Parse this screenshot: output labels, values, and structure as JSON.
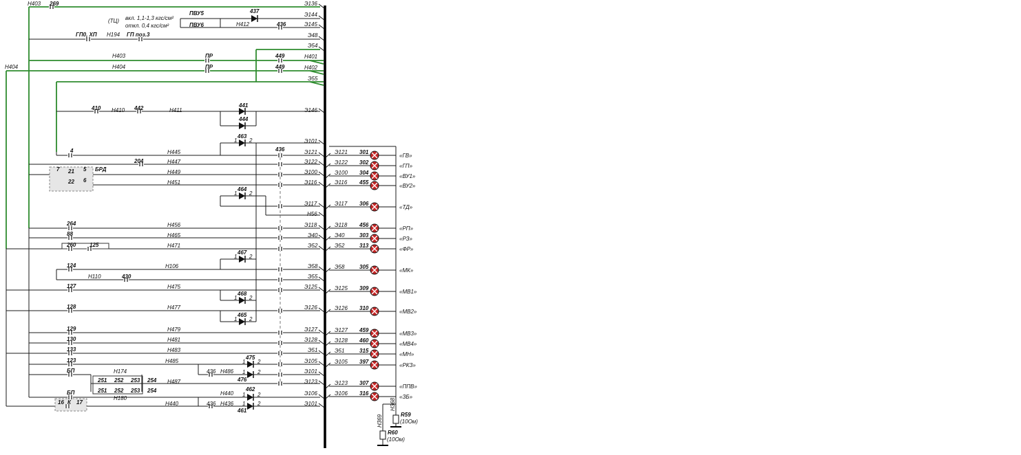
{
  "colors": {
    "wire": "#1a1a1a",
    "green_wire": "#2e8b2e",
    "lamp_fill": "#c62828",
    "box_fill": "#e6e6e6"
  },
  "top": {
    "h403": "Н403",
    "c269": "269",
    "h404": "Н404",
    "pvu5": "ПВУ5",
    "pvu6": "ПВУ6",
    "d437": "437",
    "c436": "436",
    "h412": "Н412",
    "tc": "(ТЦ)",
    "on": "вкл. 1,1-1,3 кгс/см²",
    "off": "откл. 0,4 кгс/см²",
    "gp0": "ГП0, ХП",
    "h194": "Н194",
    "gp3": "ГП поз.3",
    "h403b": "Н403",
    "h404b": "Н404",
    "pr1": "ПР",
    "pr2": "ПР",
    "c449a": "449",
    "c449b": "449",
    "e136": "Э136",
    "e144": "Э144",
    "e145": "Э145",
    "e48": "Э48",
    "e54": "Э54",
    "h401": "Н401",
    "h402": "Н402",
    "e55": "Э55"
  },
  "rows": {
    "c410": "410",
    "h410": "Н410",
    "c442": "442",
    "h411": "Н411",
    "d441": "441",
    "d444": "444",
    "e146": "Э146",
    "d463": "463",
    "e101": "Э101",
    "c4": "4",
    "h445": "Н445",
    "c436": "436",
    "e121": "Э121",
    "c204": "204",
    "h447": "Н447",
    "e122": "Э122",
    "brd": "БРД",
    "b7": "7",
    "b21": "21",
    "b5": "5",
    "b22": "22",
    "b6": "6",
    "h449": "Н449",
    "e100": "Э100",
    "h451": "Н451",
    "e116": "Э116",
    "d464": "464",
    "e117": "Э117",
    "h56": "Н56",
    "c264": "264",
    "h456": "Н456",
    "e118": "Э118",
    "c88": "88",
    "h465": "Н465",
    "e40": "Э40",
    "c260": "260",
    "c125": "125",
    "h471": "Н471",
    "e52": "Э52",
    "c124": "124",
    "h106": "Н106",
    "d467": "467",
    "e58": "Э58",
    "h110": "Н110",
    "c430": "430",
    "e55b": "Э55",
    "c127": "127",
    "h475": "Н475",
    "e125": "Э125",
    "d468": "468",
    "c128": "128",
    "h477": "Н477",
    "e126": "Э126",
    "d465": "465",
    "c129": "129",
    "h479": "Н479",
    "e127": "Э127",
    "c130": "130",
    "h481": "Н481",
    "e128": "Э128",
    "c133": "133",
    "h483": "Н483",
    "e51": "Э51",
    "c123": "123",
    "h485": "Н485",
    "d475": "475",
    "e105": "Э105",
    "bp1": "БП",
    "h174": "Н174",
    "c436b": "436",
    "h486": "Н486",
    "d476": "476",
    "e101b": "Э101",
    "c251a": "251",
    "c252a": "252",
    "c253a": "253",
    "c254a": "254",
    "c251b": "251",
    "c252b": "252",
    "c253b": "253",
    "c254b": "254",
    "h487": "Н487",
    "e123": "Э123",
    "h180": "Н180",
    "bp2": "БП",
    "h440": "Н440",
    "d462": "462",
    "e106": "Э106",
    "k16": "16",
    "kk": "К",
    "k17": "17",
    "h440b": "Н440",
    "c436c": "436",
    "h436": "Н436",
    "d461": "461",
    "e101c": "Э101",
    "one": "1",
    "two": "2"
  },
  "lamps": [
    {
      "wire": "Э121",
      "num": "301",
      "label": "«ГВ»"
    },
    {
      "wire": "Э122",
      "num": "302",
      "label": "«ГП»"
    },
    {
      "wire": "Э100",
      "num": "304",
      "label": "«ВУ1»"
    },
    {
      "wire": "Э116",
      "num": "455",
      "label": "«ВУ2»"
    },
    {
      "wire": "Э117",
      "num": "306",
      "label": "«ТД»"
    },
    {
      "wire": "Э118",
      "num": "456",
      "label": "«РП»"
    },
    {
      "wire": "Э40",
      "num": "303",
      "label": "«РЗ»"
    },
    {
      "wire": "Э52",
      "num": "313",
      "label": "«ФР»"
    },
    {
      "wire": "Э58",
      "num": "305",
      "label": "«МК»"
    },
    {
      "wire": "Э125",
      "num": "309",
      "label": "«МВ1»"
    },
    {
      "wire": "Э126",
      "num": "310",
      "label": "«МВ2»"
    },
    {
      "wire": "Э127",
      "num": "459",
      "label": "«МВ3»"
    },
    {
      "wire": "Э128",
      "num": "460",
      "label": "«МВ4»"
    },
    {
      "wire": "Э51",
      "num": "315",
      "label": "«МН»"
    },
    {
      "wire": "Э105",
      "num": "397",
      "label": "«РКЗ»"
    },
    {
      "wire": "Э123",
      "num": "307",
      "label": "«ППВ»"
    },
    {
      "wire": "Э106",
      "num": "316",
      "label": "«ЗБ»"
    }
  ],
  "resistors": {
    "h368": "Н368",
    "h369": "Н369",
    "r59": "R59",
    "r59v": "(10Ом)",
    "r60": "R60",
    "r60v": "(10Ом)"
  }
}
